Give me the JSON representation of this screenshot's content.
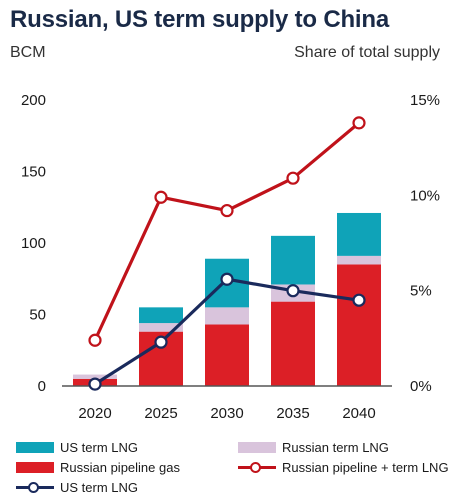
{
  "title": "Russian, US term supply to China",
  "left_unit": "BCM",
  "right_unit": "Share of total supply",
  "colors": {
    "us_lng": "#0fa3b8",
    "russian_lng": "#d9c4dc",
    "russian_pipeline": "#dc1f26",
    "russian_share_line": "#c0121a",
    "us_share_line": "#1a2a5c"
  },
  "chart_data": {
    "type": "bar",
    "stacked": true,
    "categories": [
      "2020",
      "2025",
      "2030",
      "2035",
      "2040"
    ],
    "series": [
      {
        "name": "Russian pipeline gas",
        "values": [
          5,
          38,
          43,
          59,
          85
        ]
      },
      {
        "name": "Russian term LNG",
        "values": [
          3,
          6,
          12,
          12,
          6
        ]
      },
      {
        "name": "US term LNG",
        "values": [
          0,
          11,
          34,
          34,
          30
        ]
      }
    ],
    "line_series": [
      {
        "name": "Russian pipeline + term LNG",
        "axis": "right",
        "values": [
          2.4,
          9.9,
          9.2,
          10.9,
          13.8
        ]
      },
      {
        "name": "US term LNG",
        "axis": "right",
        "values": [
          0.1,
          2.3,
          5.6,
          5.0,
          4.5
        ]
      }
    ],
    "left_axis": {
      "ylim": [
        0,
        200
      ],
      "ticks": [
        "0",
        "50",
        "100",
        "150",
        "200"
      ]
    },
    "right_axis": {
      "ylim": [
        0,
        15
      ],
      "ticks": [
        "0%",
        "5%",
        "10%",
        "15%"
      ]
    },
    "legend": [
      {
        "label": "US term LNG",
        "kind": "swatch",
        "color": "#0fa3b8"
      },
      {
        "label": "Russian term LNG",
        "kind": "swatch",
        "color": "#d9c4dc"
      },
      {
        "label": "Russian pipeline gas",
        "kind": "swatch",
        "color": "#dc1f26"
      },
      {
        "label": "Russian pipeline + term LNG",
        "kind": "line",
        "color": "#c0121a"
      },
      {
        "label": "US term LNG",
        "kind": "line",
        "color": "#1a2a5c"
      }
    ],
    "legend_placement": "bottom",
    "grid": false
  }
}
